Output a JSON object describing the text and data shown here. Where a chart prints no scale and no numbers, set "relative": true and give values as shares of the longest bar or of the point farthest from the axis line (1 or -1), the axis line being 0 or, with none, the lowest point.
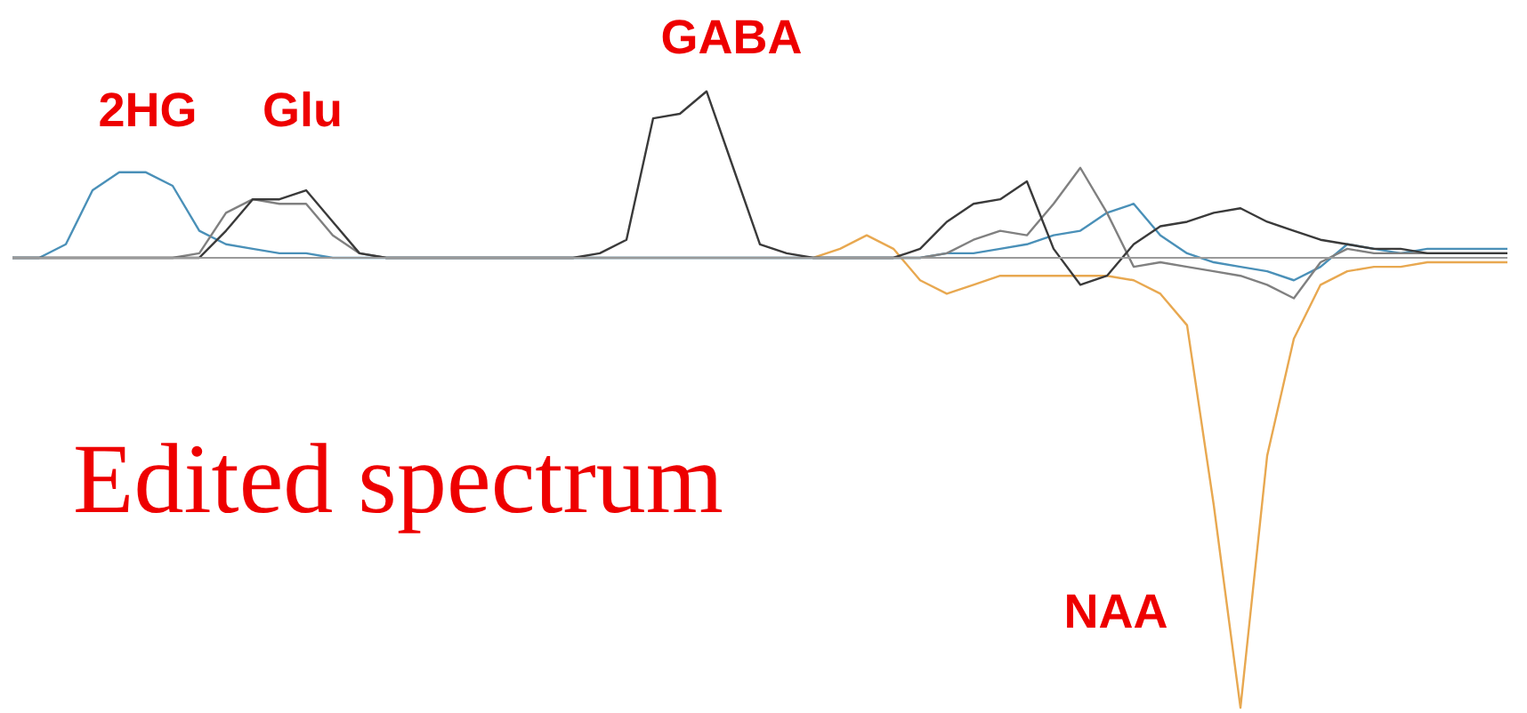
{
  "chart_data": {
    "type": "line",
    "title": "Edited spectrum",
    "relative": true,
    "marker": "none",
    "line_style": "solid",
    "annotations": [
      "2HG",
      "Glu",
      "GABA",
      "NAA"
    ],
    "categories": [
      null,
      null,
      null,
      null,
      null,
      null,
      null,
      null,
      null,
      null,
      null,
      null,
      null,
      null,
      null,
      null,
      null,
      null,
      null,
      null,
      null,
      null,
      null,
      null,
      null,
      null,
      null,
      null,
      null,
      null,
      null,
      null,
      null,
      null,
      null,
      null,
      null,
      null,
      null,
      null,
      null,
      null,
      null,
      null,
      null,
      null,
      null,
      null,
      null,
      null,
      null,
      null,
      null,
      null,
      null,
      null,
      null
    ],
    "series": [
      {
        "color": "#e8a850",
        "values": [
          null,
          null,
          null,
          null,
          null,
          null,
          null,
          null,
          null,
          null,
          null,
          null,
          null,
          null,
          null,
          null,
          null,
          null,
          null,
          null,
          null,
          null,
          null,
          null,
          null,
          null,
          null,
          null,
          null,
          null,
          0,
          0.02,
          0.05,
          0.02,
          -0.05,
          -0.08,
          -0.06,
          -0.04,
          -0.04,
          -0.04,
          -0.04,
          -0.04,
          -0.05,
          -0.08,
          -0.15,
          -0.55,
          -1,
          -0.44,
          -0.18,
          -0.06,
          -0.03,
          -0.02,
          -0.02,
          -0.01,
          -0.01,
          -0.01,
          -0.01
        ]
      },
      {
        "color": "#4a90b8",
        "values": [
          0,
          0,
          0.03,
          0.15,
          0.19,
          0.19,
          0.16,
          0.06,
          0.03,
          0.02,
          0.01,
          0.01,
          0,
          0,
          0,
          0,
          0,
          0,
          0,
          0,
          0,
          0,
          0,
          0,
          0,
          0,
          0,
          0,
          0,
          0,
          0,
          0,
          0,
          0,
          0,
          0.01,
          0.01,
          0.02,
          0.03,
          0.05,
          0.06,
          0.1,
          0.12,
          0.05,
          0.01,
          -0.01,
          -0.02,
          -0.03,
          -0.05,
          -0.02,
          0.03,
          0.02,
          0.01,
          0.02,
          0.02,
          0.02,
          0.02
        ]
      },
      {
        "color": "#808080",
        "values": [
          0,
          0,
          0,
          0,
          0,
          0,
          0,
          0.01,
          0.1,
          0.13,
          0.12,
          0.12,
          0.05,
          0.01,
          0,
          0,
          0,
          0,
          0,
          0,
          0,
          0,
          0,
          0,
          0,
          0,
          0,
          0,
          0,
          0,
          0,
          0,
          0,
          0,
          0,
          0.01,
          0.04,
          0.06,
          0.05,
          0.12,
          0.2,
          0.1,
          -0.02,
          -0.01,
          -0.02,
          -0.03,
          -0.04,
          -0.06,
          -0.09,
          -0.01,
          0.02,
          0.01,
          0.01,
          0.01,
          0.01,
          0.01,
          0.01
        ]
      },
      {
        "color": "#3a3a3a",
        "values": [
          0,
          0,
          0,
          0,
          0,
          0,
          0,
          0,
          0.06,
          0.13,
          0.13,
          0.15,
          0.08,
          0.01,
          0,
          0,
          0,
          0,
          0,
          0,
          0,
          0,
          0.01,
          0.04,
          0.31,
          0.32,
          0.37,
          0.2,
          0.03,
          0.01,
          0,
          0,
          0,
          0,
          0.02,
          0.08,
          0.12,
          0.13,
          0.17,
          0.02,
          -0.06,
          -0.04,
          0.03,
          0.07,
          0.08,
          0.1,
          0.11,
          0.08,
          0.06,
          0.04,
          0.03,
          0.02,
          0.02,
          0.01,
          0.01,
          0.01,
          0.01
        ]
      }
    ]
  }
}
